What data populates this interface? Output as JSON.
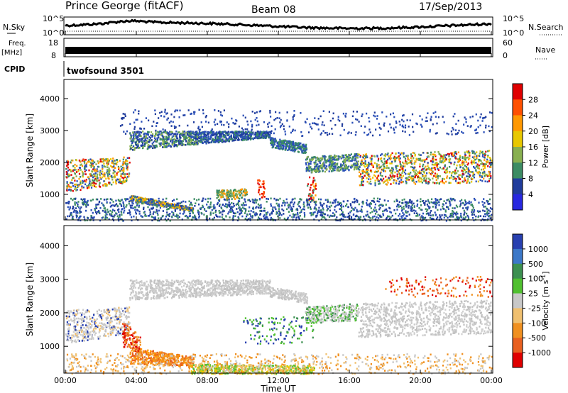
{
  "header": {
    "station": "Prince George (fitACF)",
    "beam": "Beam 08",
    "date": "17/Sep/2013"
  },
  "strip_panels": {
    "nsky": {
      "label": "N.Sky",
      "ticks": [
        "10^5",
        "10^0"
      ]
    },
    "nsearch": {
      "label": "N.Search",
      "ticks": [
        "10^5",
        "10^0"
      ]
    },
    "freq": {
      "label_line1": "Freq.",
      "label_line2": "[MHz]",
      "ticks": [
        "18",
        "8"
      ]
    },
    "nave": {
      "label": "Nave",
      "ticks": [
        "60",
        "0"
      ]
    },
    "cpid": {
      "label": "CPID",
      "value": "twofsound 3501"
    }
  },
  "chart_data": [
    {
      "type": "heatmap",
      "panel": "power",
      "ylabel": "Slant Range [km]",
      "yticks": [
        1000,
        2000,
        3000,
        4000
      ],
      "ylim": [
        200,
        4600
      ],
      "xlim": [
        0,
        24
      ],
      "colorbar": {
        "label": "Power [dB]",
        "ticks": [
          "28",
          "24",
          "20",
          "16",
          "12",
          "8",
          "4"
        ],
        "colors": [
          "#e00000",
          "#ff5000",
          "#ff9800",
          "#e8c800",
          "#88b050",
          "#3c8c64",
          "#203c9c",
          "#2828e0"
        ]
      }
    },
    {
      "type": "heatmap",
      "panel": "velocity",
      "ylabel": "Slant Range [km]",
      "yticks": [
        1000,
        2000,
        3000,
        4000
      ],
      "ylim": [
        200,
        4600
      ],
      "xlim": [
        0,
        24
      ],
      "colorbar": {
        "label": "Velocity [m s",
        "label_sup": "-1",
        "label_close": "]",
        "ticks": [
          "1000",
          "500",
          "100",
          "25",
          "-25",
          "-100",
          "-500",
          "-1000"
        ],
        "colors": [
          "#2840b0",
          "#3c78c8",
          "#3c9050",
          "#50c030",
          "#c8c8c8",
          "#f0c070",
          "#f09020",
          "#e86020",
          "#e00000"
        ]
      }
    }
  ],
  "x_axis": {
    "ticks": [
      "00:00",
      "04:00",
      "08:00",
      "12:00",
      "16:00",
      "20:00",
      "00:00"
    ],
    "label": "Time UT"
  },
  "colors": {
    "gray_band": "#c8c8c8",
    "ionosphere": "#2a4fb8",
    "strong_echo": "#e03000",
    "flow_away": "#f08020"
  }
}
